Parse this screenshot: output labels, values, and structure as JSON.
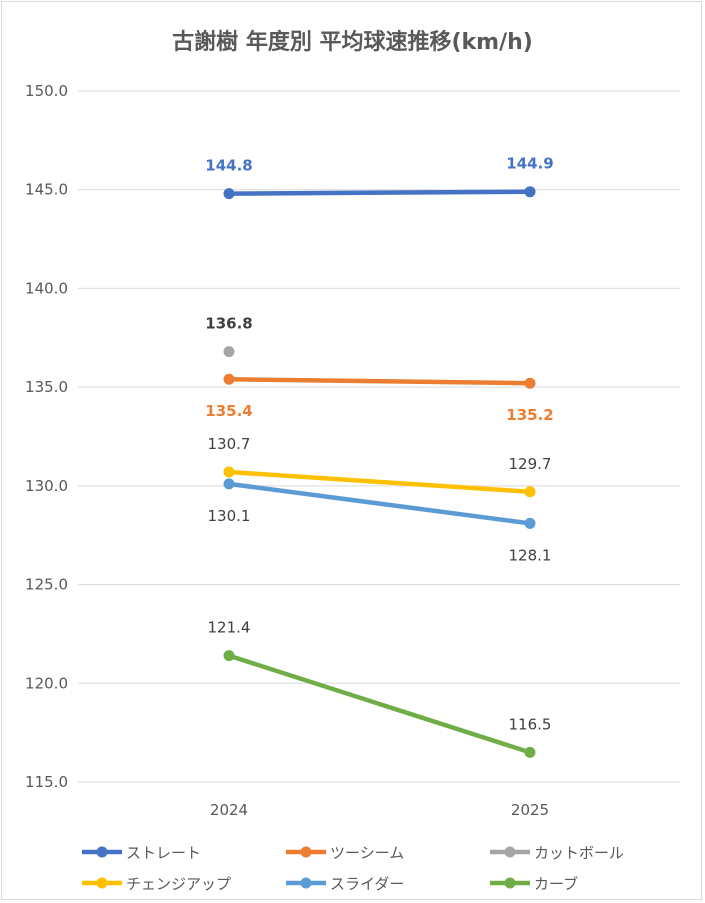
{
  "chart_data": {
    "type": "line",
    "title": "古謝樹 年度別 平均球速推移(km/h)",
    "xlabel": "",
    "ylabel": "",
    "categories": [
      "2024",
      "2025"
    ],
    "ylim": [
      115.0,
      150.0
    ],
    "yticks": [
      "115.0",
      "120.0",
      "125.0",
      "130.0",
      "135.0",
      "140.0",
      "145.0",
      "150.0"
    ],
    "grid": true,
    "legend_position": "bottom",
    "series": [
      {
        "name": "ストレート",
        "color": "#4472C4",
        "values": [
          144.8,
          144.9
        ],
        "labels": [
          "144.8",
          "144.9"
        ],
        "label_side": "above",
        "label_color": "#4472C4",
        "label_bold": true
      },
      {
        "name": "ツーシーム",
        "color": "#ED7D31",
        "values": [
          135.4,
          135.2
        ],
        "labels": [
          "135.4",
          "135.2"
        ],
        "label_side": "below",
        "label_color": "#ED7D31",
        "label_bold": true
      },
      {
        "name": "カットボール",
        "color": "#A5A5A5",
        "values": [
          136.8,
          null
        ],
        "labels": [
          "136.8",
          null
        ],
        "label_side": "above",
        "label_color": "#404040",
        "label_bold": true
      },
      {
        "name": "チェンジアップ",
        "color": "#FFC000",
        "values": [
          130.7,
          129.7
        ],
        "labels": [
          "130.7",
          "129.7"
        ],
        "label_side": "above",
        "label_color": "#404040",
        "label_bold": false
      },
      {
        "name": "スライダー",
        "color": "#5B9BD5",
        "values": [
          130.1,
          128.1
        ],
        "labels": [
          "130.1",
          "128.1"
        ],
        "label_side": "below",
        "label_color": "#404040",
        "label_bold": false
      },
      {
        "name": "カーブ",
        "color": "#70AD47",
        "values": [
          121.4,
          116.5
        ],
        "labels": [
          "121.4",
          "116.5"
        ],
        "label_side": "above",
        "label_color": "#404040",
        "label_bold": false
      }
    ]
  }
}
